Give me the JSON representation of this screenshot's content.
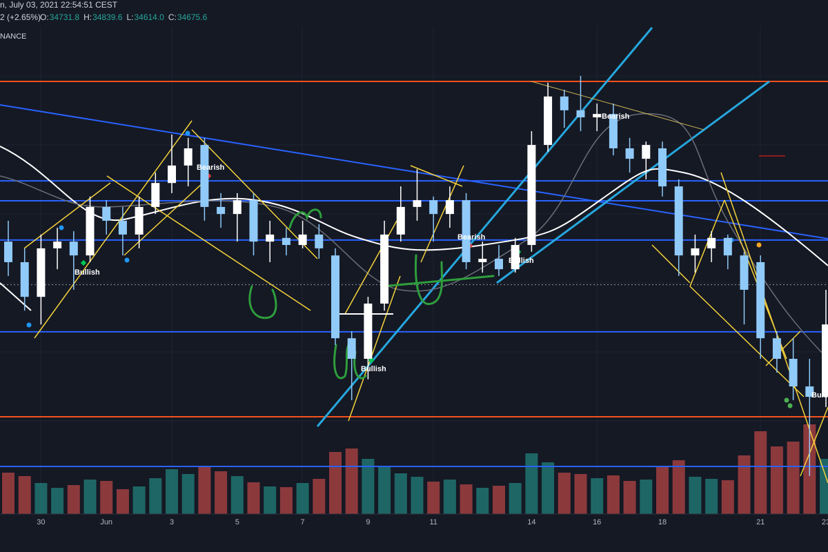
{
  "chart_data": {
    "type": "candlestick",
    "title": "n, July 03, 2021 22:54:51 CEST",
    "change": "2 (+2.65%)",
    "ohlc_info": [
      {
        "label": "O:",
        "value": "34731.8"
      },
      {
        "label": "H:",
        "value": "34839.6"
      },
      {
        "label": "L:",
        "value": "34614.0"
      },
      {
        "label": "C:",
        "value": "34675.6"
      }
    ],
    "exchange": "NANCE",
    "annotations": [
      "Bullish",
      "Bearish",
      "Bullish",
      "Bearish",
      "Bullish",
      "Bearish",
      "Bulli"
    ],
    "categories": [
      null,
      null,
      "30",
      null,
      null,
      null,
      "Jun",
      null,
      null,
      null,
      "3",
      null,
      null,
      null,
      "5",
      null,
      null,
      null,
      "7",
      null,
      null,
      null,
      "9",
      null,
      null,
      null,
      "11",
      null,
      null,
      null,
      null,
      null,
      "14",
      null,
      null,
      null,
      "16",
      null,
      null,
      null,
      "18",
      null,
      null,
      null,
      null,
      null,
      "21",
      null,
      null,
      null,
      "23"
    ],
    "open": [
      36080,
      35410,
      34280,
      35860,
      36080,
      35630,
      37210,
      36760,
      36310,
      37210,
      37990,
      38560,
      39230,
      37210,
      36980,
      37430,
      36080,
      36200,
      35970,
      36310,
      35630,
      32930,
      32260,
      34060,
      36310,
      37210,
      37430,
      36980,
      37430,
      35410,
      35520,
      35180,
      35970,
      39230,
      40810,
      40360,
      40130,
      40240,
      39120,
      38780,
      39120,
      37880,
      35630,
      35860,
      36200,
      35630,
      35410,
      32930,
      32260,
      31360,
      31020
    ],
    "high": [
      36760,
      35860,
      36310,
      36530,
      36420,
      37550,
      37430,
      37210,
      37550,
      38330,
      39570,
      39460,
      39460,
      37660,
      37660,
      37660,
      36760,
      36530,
      36760,
      36650,
      35860,
      33160,
      34280,
      36760,
      37880,
      38440,
      37550,
      37880,
      37660,
      36080,
      35970,
      36200,
      39680,
      41260,
      41030,
      41480,
      40580,
      40580,
      39460,
      39340,
      39340,
      38110,
      36310,
      36420,
      36310,
      35750,
      35630,
      33160,
      32930,
      32260,
      34510
    ],
    "low": [
      34960,
      33830,
      33380,
      35180,
      34510,
      35410,
      36310,
      35630,
      35860,
      36980,
      37660,
      37880,
      36760,
      36530,
      36080,
      35630,
      35410,
      35630,
      35860,
      35520,
      32710,
      30910,
      31590,
      33830,
      36080,
      36760,
      36080,
      36530,
      35180,
      35070,
      34960,
      35070,
      35750,
      39010,
      39790,
      39680,
      39680,
      38890,
      38330,
      38110,
      37550,
      34960,
      35070,
      35410,
      35180,
      33380,
      32260,
      31810,
      30910,
      28440,
      30690
    ],
    "close": [
      35410,
      34280,
      35860,
      36080,
      35630,
      37210,
      36760,
      36310,
      37210,
      37990,
      38560,
      39120,
      37210,
      36980,
      37430,
      36080,
      36310,
      35970,
      36310,
      35860,
      32930,
      32260,
      34060,
      36310,
      37210,
      37430,
      36980,
      37430,
      35410,
      35520,
      35180,
      35970,
      39230,
      40810,
      40360,
      40130,
      40240,
      39120,
      38780,
      39230,
      37880,
      35630,
      35860,
      36200,
      35630,
      34510,
      32930,
      32260,
      31360,
      31020,
      33380
    ],
    "volume": [
      6000,
      5500,
      4500,
      3800,
      4200,
      5000,
      4800,
      3600,
      4000,
      5200,
      6500,
      5800,
      7000,
      6200,
      5500,
      4600,
      4000,
      3900,
      4500,
      5100,
      9000,
      9500,
      8000,
      6800,
      5900,
      5400,
      4700,
      5000,
      4300,
      3800,
      4100,
      4500,
      8800,
      7500,
      6000,
      5800,
      5200,
      5600,
      4800,
      5000,
      6900,
      7800,
      5400,
      5100,
      4900,
      8500,
      12000,
      9800,
      10500,
      13000,
      8000
    ],
    "colors": {
      "up": "#ffffff",
      "down": "#90caf9",
      "volume_up": "#26a69a",
      "volume_down": "#ef5350"
    },
    "ylim": [
      27200,
      43100
    ],
    "hlines": [
      {
        "value": 41300,
        "color": "#f4511e",
        "style": "solid"
      },
      {
        "value": 38060,
        "color": "#2962ff",
        "style": "solid"
      },
      {
        "value": 37410,
        "color": "#2962ff",
        "style": "solid"
      },
      {
        "value": 36130,
        "color": "#2962ff",
        "style": "solid"
      },
      {
        "value": 34675.6,
        "color": "#9598a1",
        "style": "dotted"
      },
      {
        "value": 33140,
        "color": "#2962ff",
        "style": "solid"
      },
      {
        "value": 30370,
        "color": "#f4511e",
        "style": "solid"
      }
    ]
  }
}
